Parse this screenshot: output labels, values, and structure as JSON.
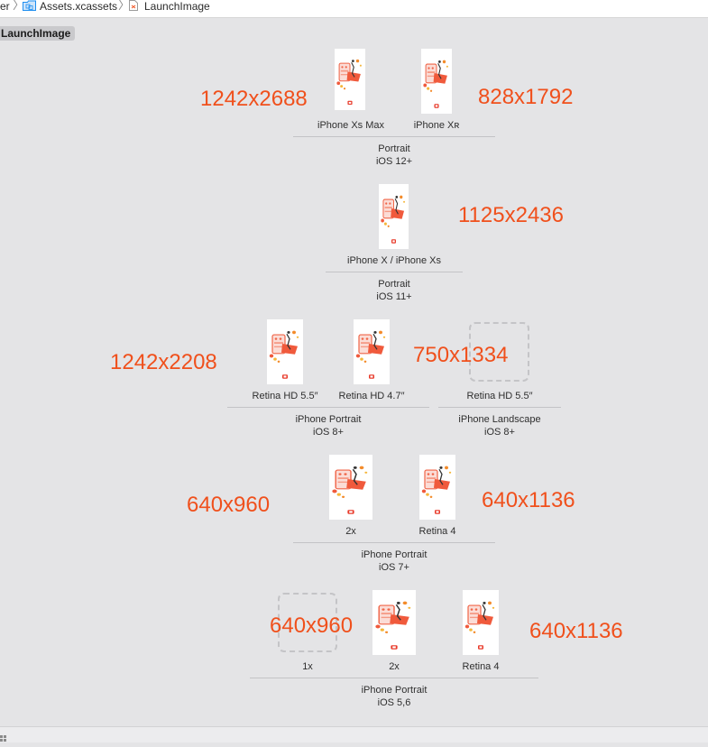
{
  "breadcrumb": {
    "items": [
      "er",
      "Assets.xcassets",
      "LaunchImage"
    ],
    "separator": "〉"
  },
  "image_set": {
    "name": "LaunchImage"
  },
  "groups": [
    {
      "slots": [
        "iPhone Xs Max",
        "iPhone Xʀ"
      ],
      "orientation": "Portrait",
      "os": "iOS 12+"
    },
    {
      "slots": [
        "iPhone X / iPhone Xs"
      ],
      "orientation": "Portrait",
      "os": "iOS 11+"
    },
    {
      "slots": [
        "Retina HD 5.5″",
        "Retina HD 4.7″"
      ],
      "orientation": "iPhone Portrait",
      "os": "iOS 8+"
    },
    {
      "slots": [
        "Retina HD 5.5″"
      ],
      "orientation": "iPhone Landscape",
      "os": "iOS 8+"
    },
    {
      "slots": [
        "2x",
        "Retina 4"
      ],
      "orientation": "iPhone Portrait",
      "os": "iOS 7+"
    },
    {
      "slots": [
        "1x",
        "2x",
        "Retina 4"
      ],
      "orientation": "iPhone Portrait",
      "os": "iOS 5,6"
    }
  ],
  "annotations": [
    "1242x2688",
    "828x1792",
    "1125x2436",
    "1242x2208",
    "750x1334",
    "640x960",
    "640x1136",
    "640x960",
    "640x1136"
  ],
  "colors": {
    "annotation": "#f0501c",
    "canvas": "#e4e4e6",
    "folder_icon": "#1d8ef0",
    "thumbnail_accent": "#f05a3c"
  },
  "icons": {
    "folder": "folder-icon",
    "file": "launch-image-file-icon",
    "thumbnail": "launch-image-thumbnail"
  }
}
